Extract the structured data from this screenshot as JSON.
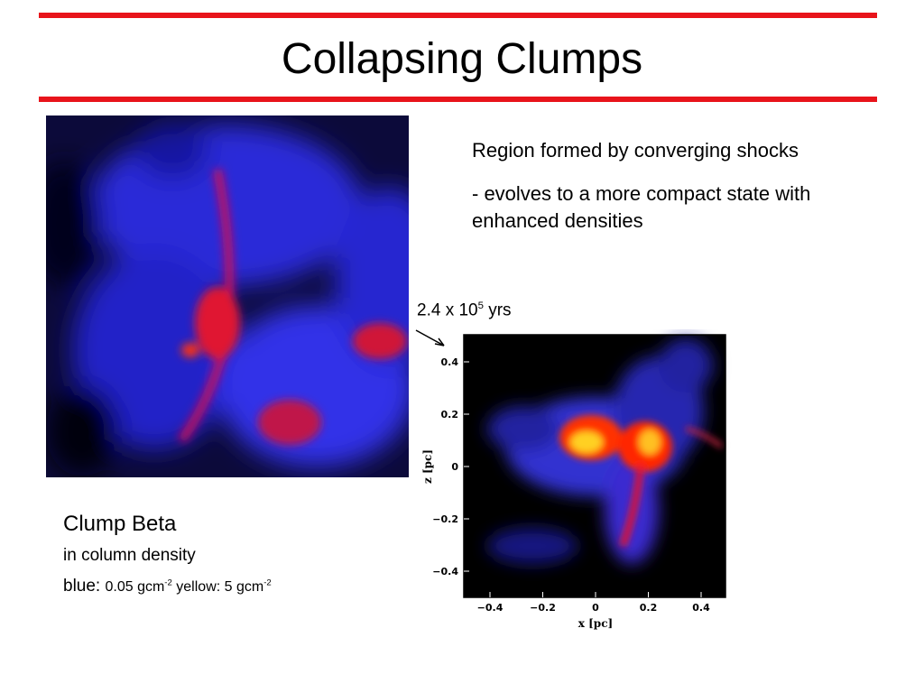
{
  "slide": {
    "title": "Collapsing Clumps",
    "bullets": [
      "Region formed by converging shocks",
      "- evolves to a more compact state with enhanced densities"
    ],
    "annotation": {
      "base": "2.4 x 10",
      "exponent": "5",
      "unit": "yrs"
    },
    "caption": {
      "name": "Clump Beta",
      "line2": "in column density",
      "blue_label": "blue:",
      "blue_value": "0.05 gcm",
      "blue_exp": "-2",
      "yellow_value": "yellow: 5 gcm",
      "yellow_exp": "-2"
    },
    "plot": {
      "xlabel": "x [pc]",
      "ylabel": "z [pc]",
      "xticks": [
        "−0.4",
        "−0.2",
        "0",
        "0.2",
        "0.4"
      ],
      "yticks": [
        "0.4",
        "0.2",
        "0",
        "−0.2",
        "−0.4"
      ]
    }
  }
}
